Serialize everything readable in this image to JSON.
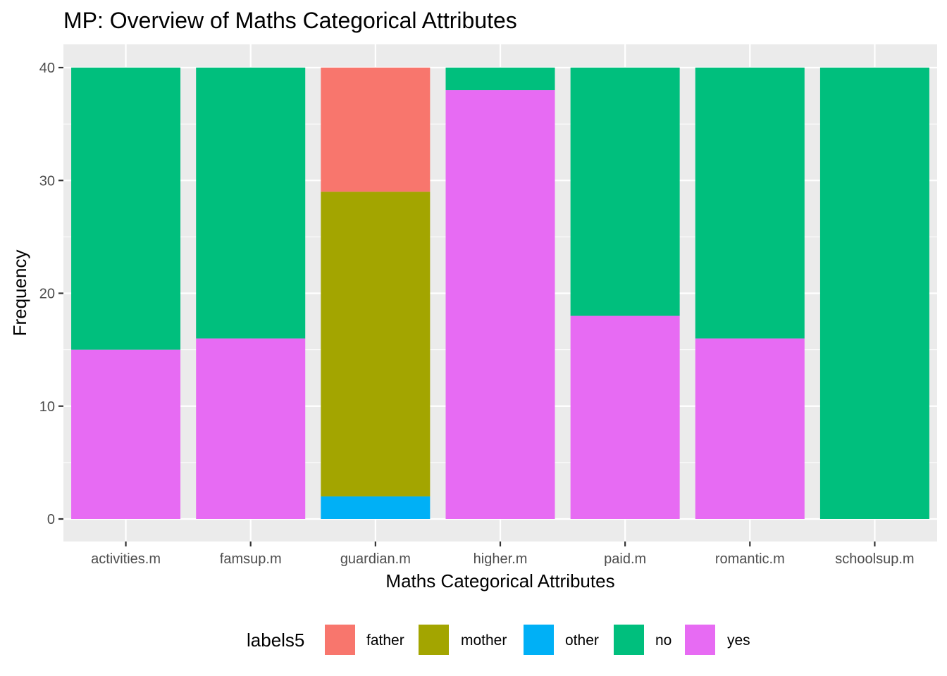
{
  "chart_data": {
    "type": "bar",
    "stacked": true,
    "title": "MP: Overview of Maths Categorical Attributes",
    "xlabel": "Maths Categorical Attributes",
    "ylabel": "Frequency",
    "ylim": [
      -2,
      42
    ],
    "yticks": [
      0,
      10,
      20,
      30,
      40
    ],
    "grid": true,
    "categories": [
      "activities.m",
      "famsup.m",
      "guardian.m",
      "higher.m",
      "paid.m",
      "romantic.m",
      "schoolsup.m"
    ],
    "series": [
      {
        "name": "father",
        "color": "#F8766D",
        "values": [
          0,
          0,
          11,
          0,
          0,
          0,
          0
        ]
      },
      {
        "name": "mother",
        "color": "#A3A500",
        "values": [
          0,
          0,
          27,
          0,
          0,
          0,
          0
        ]
      },
      {
        "name": "other",
        "color": "#00B0F6",
        "values": [
          0,
          0,
          2,
          0,
          0,
          0,
          0
        ]
      },
      {
        "name": "no",
        "color": "#00BF7D",
        "values": [
          25,
          24,
          0,
          2,
          22,
          24,
          40
        ]
      },
      {
        "name": "yes",
        "color": "#E76BF3",
        "values": [
          15,
          16,
          0,
          38,
          18,
          16,
          0
        ]
      }
    ],
    "stack_order_bottom_to_top": [
      "other",
      "mother",
      "father",
      "yes",
      "no"
    ],
    "legend": {
      "title": "labels5",
      "position": "bottom",
      "entries": [
        "father",
        "mother",
        "other",
        "no",
        "yes"
      ]
    },
    "panel_background": "#EBEBEB",
    "grid_color": "#FFFFFF"
  }
}
